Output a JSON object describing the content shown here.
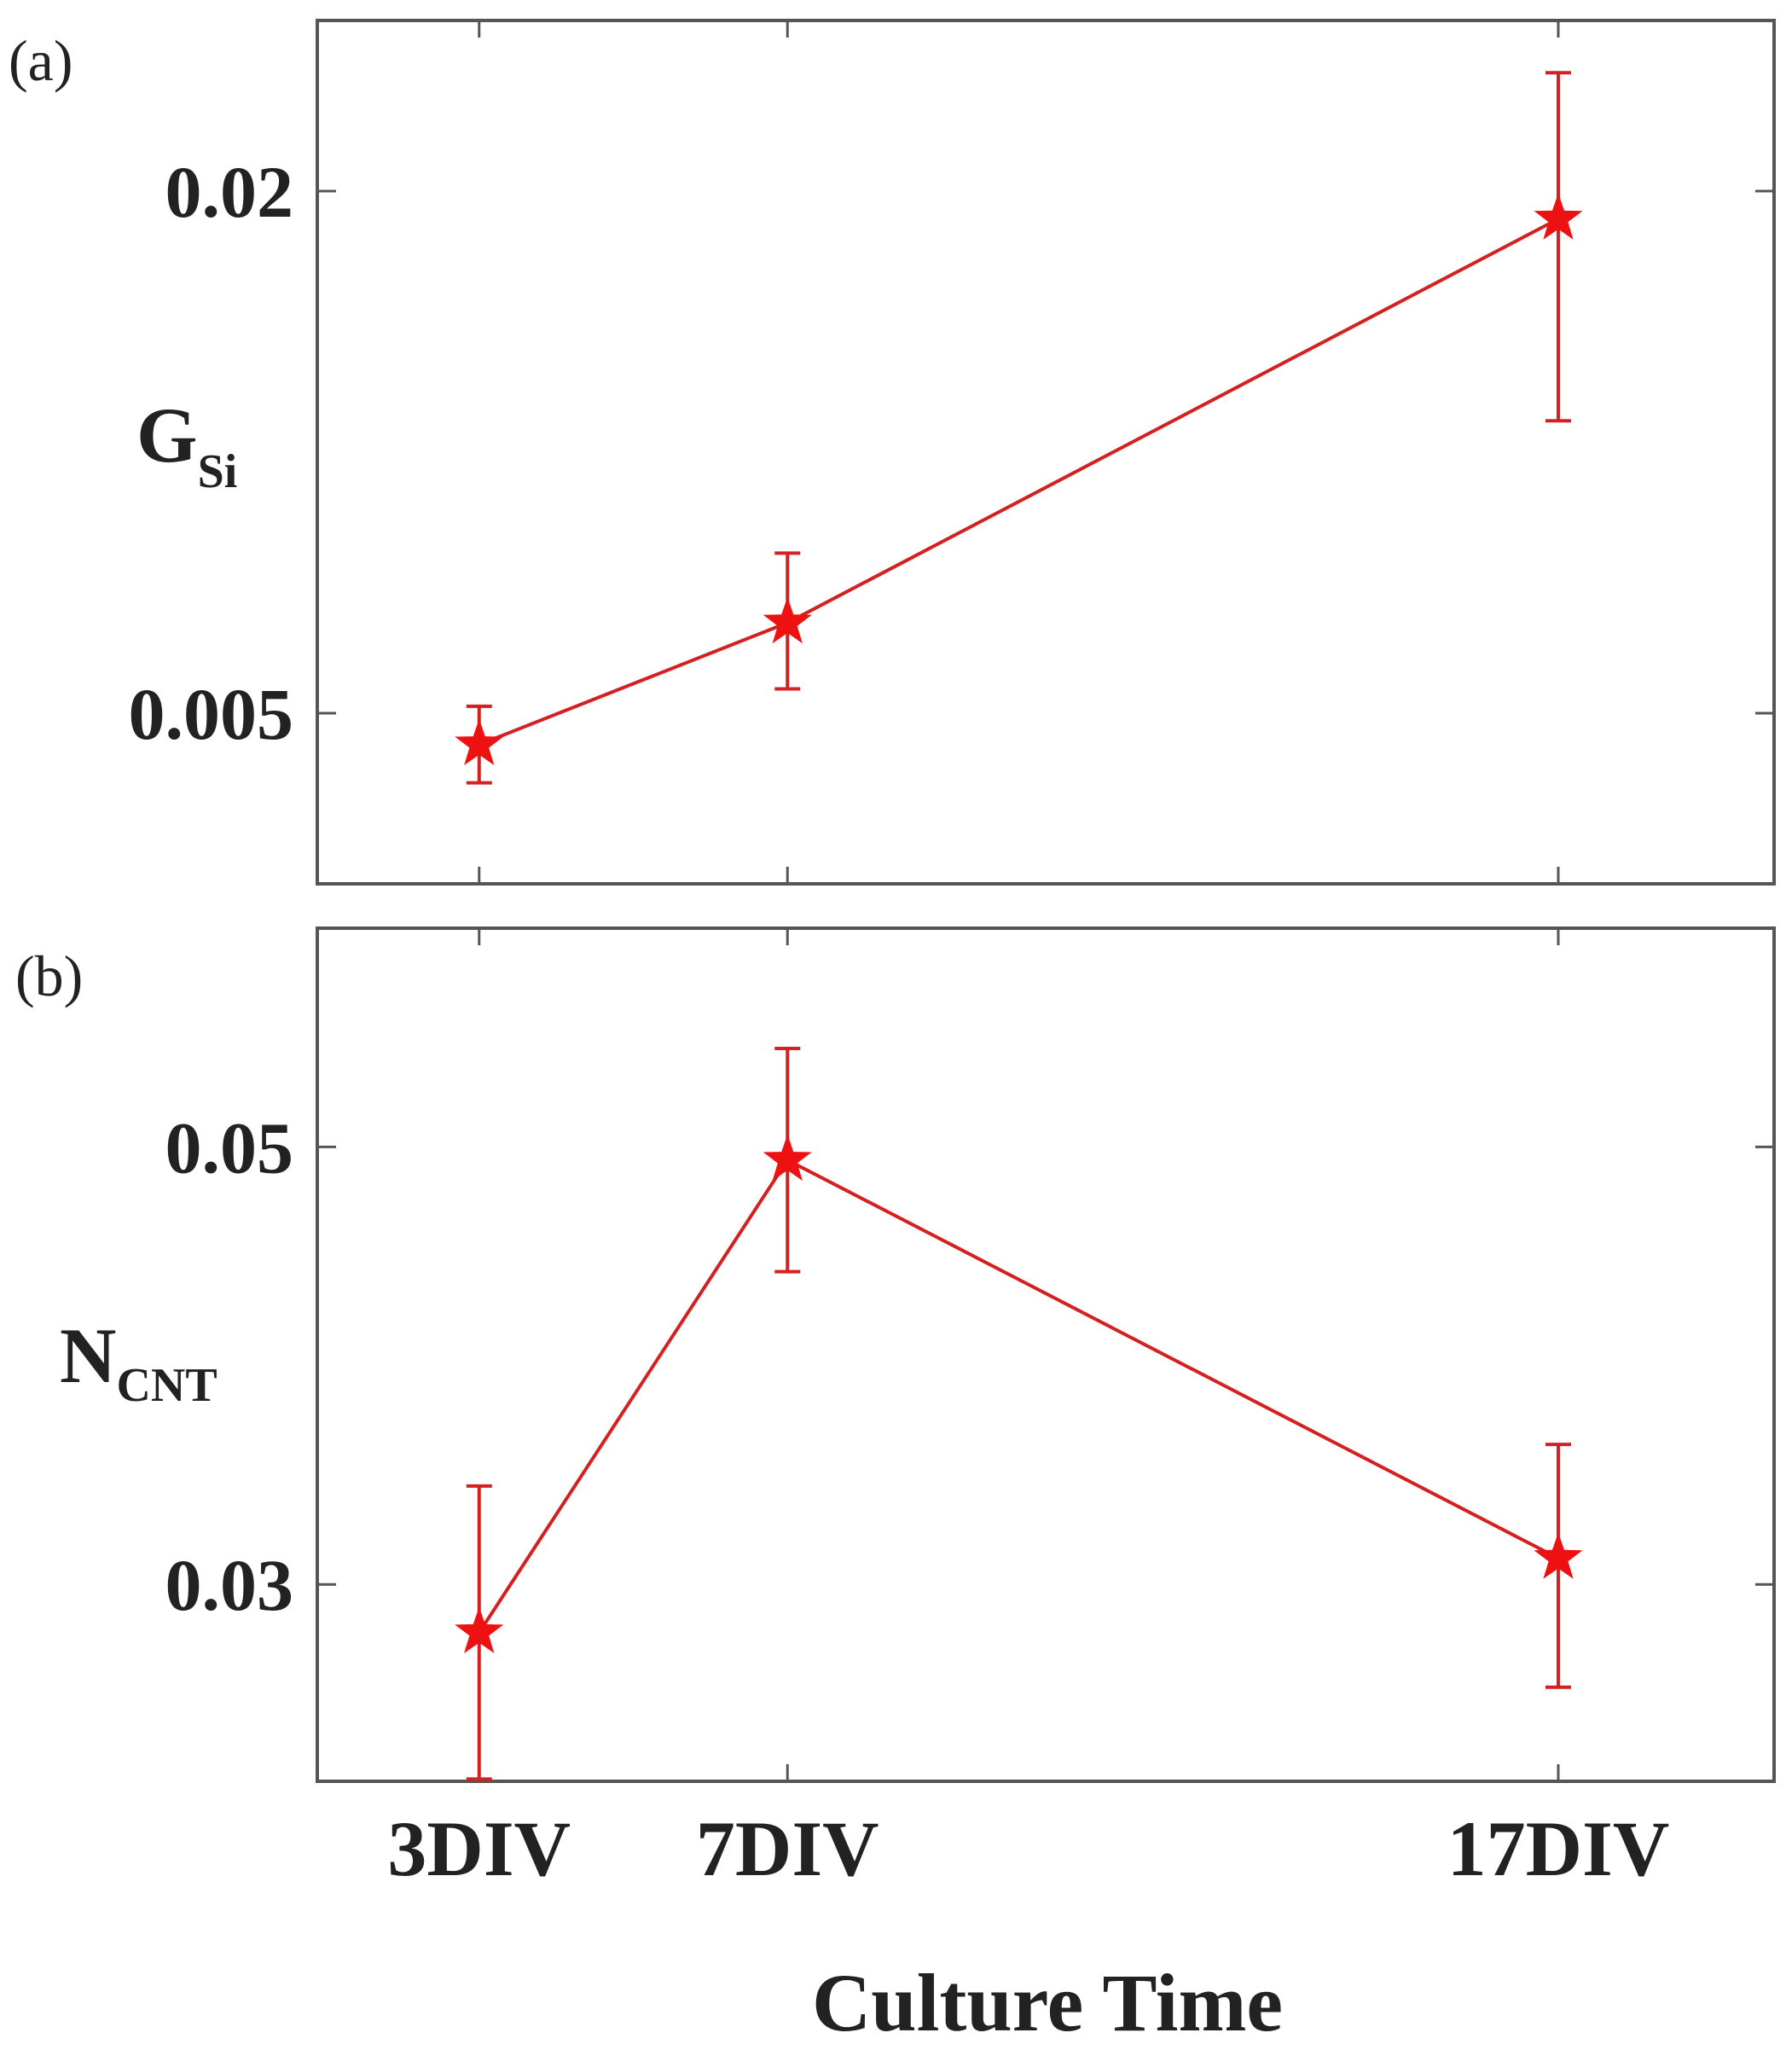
{
  "chart_data": [
    {
      "type": "line",
      "panel_label": "(a)",
      "ylabel_main": "G",
      "ylabel_sub": "Si",
      "categories": [
        "3DIV",
        "7DIV",
        "17DIV"
      ],
      "x": [
        3,
        7,
        17
      ],
      "series": [
        {
          "name": "G_Si",
          "values": [
            0.0041,
            0.0076,
            0.0192
          ],
          "err_low": [
            0.003,
            0.0057,
            0.0134
          ],
          "err_high": [
            0.0052,
            0.0096,
            0.0234
          ]
        }
      ],
      "yticks": [
        0.005,
        0.02
      ],
      "ytick_labels": [
        "0.005",
        "0.02"
      ],
      "ylim": [
        0.0001,
        0.0249
      ],
      "xlim": [
        0.9,
        19.8
      ],
      "color": "#d42020"
    },
    {
      "type": "line",
      "panel_label": "(b)",
      "ylabel_main": "N",
      "ylabel_sub": "CNT",
      "categories": [
        "3DIV",
        "7DIV",
        "17DIV"
      ],
      "x": [
        3,
        7,
        17
      ],
      "series": [
        {
          "name": "N_CNT",
          "values": [
            0.0278,
            0.0494,
            0.0312
          ],
          "err_low": [
            0.0211,
            0.0443,
            0.0253
          ],
          "err_high": [
            0.0345,
            0.0545,
            0.0364
          ]
        }
      ],
      "yticks": [
        0.03,
        0.05
      ],
      "ytick_labels": [
        "0.03",
        "0.05"
      ],
      "ylim": [
        0.021,
        0.06
      ],
      "xlim": [
        0.9,
        19.8
      ],
      "color": "#d42020"
    }
  ],
  "xtick_labels": [
    "3DIV",
    "7DIV",
    "17DIV"
  ],
  "xlabel": "Culture Time"
}
